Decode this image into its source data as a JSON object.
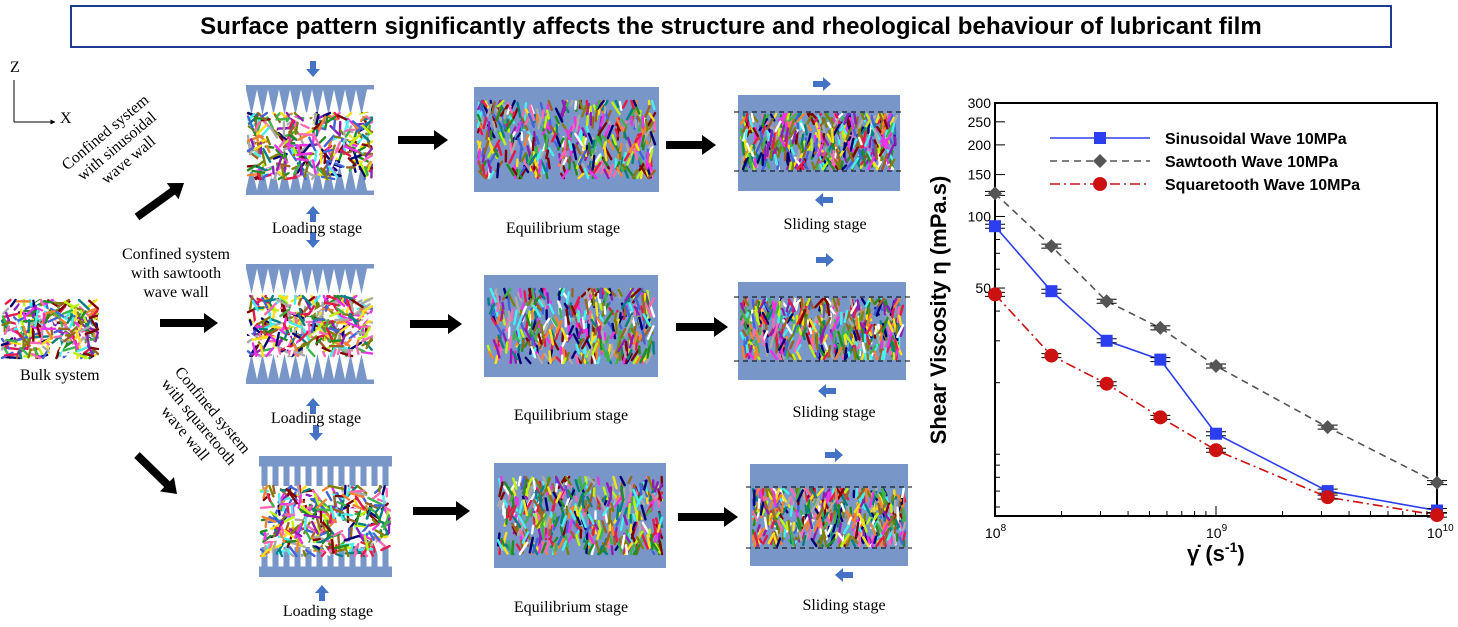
{
  "title": "Surface pattern significantly affects the structure and rheological behaviour of lubricant film",
  "axes": {
    "z": "Z",
    "x": "X"
  },
  "bulk": {
    "label": "Bulk system"
  },
  "branches": [
    {
      "name": "sinusoidal",
      "label_lines": [
        "Confined system",
        "with sinusoidal",
        "wave wall"
      ],
      "wall": "sinusoidal",
      "stages": [
        "Loading stage",
        "Equilibrium stage",
        "Sliding stage"
      ]
    },
    {
      "name": "sawtooth",
      "label_lines": [
        "Confined system",
        "with sawtooth",
        "wave wall"
      ],
      "wall": "sawtooth",
      "stages": [
        "Loading stage",
        "Equilibrium stage",
        "Sliding stage"
      ]
    },
    {
      "name": "squaretooth",
      "label_lines": [
        "Confined system",
        "with squaretooth",
        "wave wall"
      ],
      "wall": "squaretooth",
      "stages": [
        "Loading stage",
        "Equilibrium stage",
        "Sliding stage"
      ]
    }
  ],
  "colors": {
    "wall": "#7896c8",
    "arrow_blue": "#4472c4",
    "title_border": "#1f3a93",
    "chains": [
      "#e6194b",
      "#3cb44b",
      "#ffe119",
      "#4363d8",
      "#f58231",
      "#911eb4",
      "#46f0f0",
      "#f032e6",
      "#bcf60c",
      "#008080",
      "#9a6324",
      "#800000",
      "#808000",
      "#000075",
      "#aaaaaa",
      "#ffffff",
      "#ff69b4",
      "#228b22"
    ]
  },
  "chart_data": {
    "type": "line",
    "xlabel": "γ̇ (s⁻¹)",
    "ylabel": "Shear Viscosity η (mPa.s)",
    "x_scale": "log",
    "y_scale": "log",
    "xlim": [
      100000000,
      10000000000
    ],
    "ylim": [
      5.5,
      300
    ],
    "x_ticks": [
      {
        "v": 100000000,
        "base": "10",
        "exp": "8"
      },
      {
        "v": 1000000000,
        "base": "10",
        "exp": "9"
      },
      {
        "v": 10000000000,
        "base": "10",
        "exp": "10"
      }
    ],
    "y_ticks": [
      50,
      100,
      150,
      200,
      250,
      300
    ],
    "legend_position": "top-right",
    "series": [
      {
        "name": "Sinusoidal Wave 10MPa",
        "color": "#2b3ff0",
        "dash": "",
        "marker": "square",
        "x": [
          100000000,
          180000000,
          320000000,
          560000000,
          1000000000,
          3200000000,
          10000000000
        ],
        "y": [
          91,
          48.5,
          30,
          25,
          12.2,
          7.0,
          5.8
        ]
      },
      {
        "name": "Sawtooth Wave 10MPa",
        "color": "#555555",
        "dash": "7,5",
        "marker": "diamond",
        "x": [
          100000000,
          180000000,
          320000000,
          560000000,
          1000000000,
          3200000000,
          10000000000
        ],
        "y": [
          125,
          75,
          44,
          34,
          23.5,
          13.0,
          7.6
        ]
      },
      {
        "name": "Squaretooth Wave 10MPa",
        "color": "#cc1111",
        "dash": "10,4,2,4",
        "marker": "circle",
        "x": [
          100000000,
          180000000,
          320000000,
          560000000,
          1000000000,
          3200000000,
          10000000000
        ],
        "y": [
          47,
          26,
          19.8,
          14.3,
          10.4,
          6.6,
          5.55
        ]
      }
    ]
  }
}
